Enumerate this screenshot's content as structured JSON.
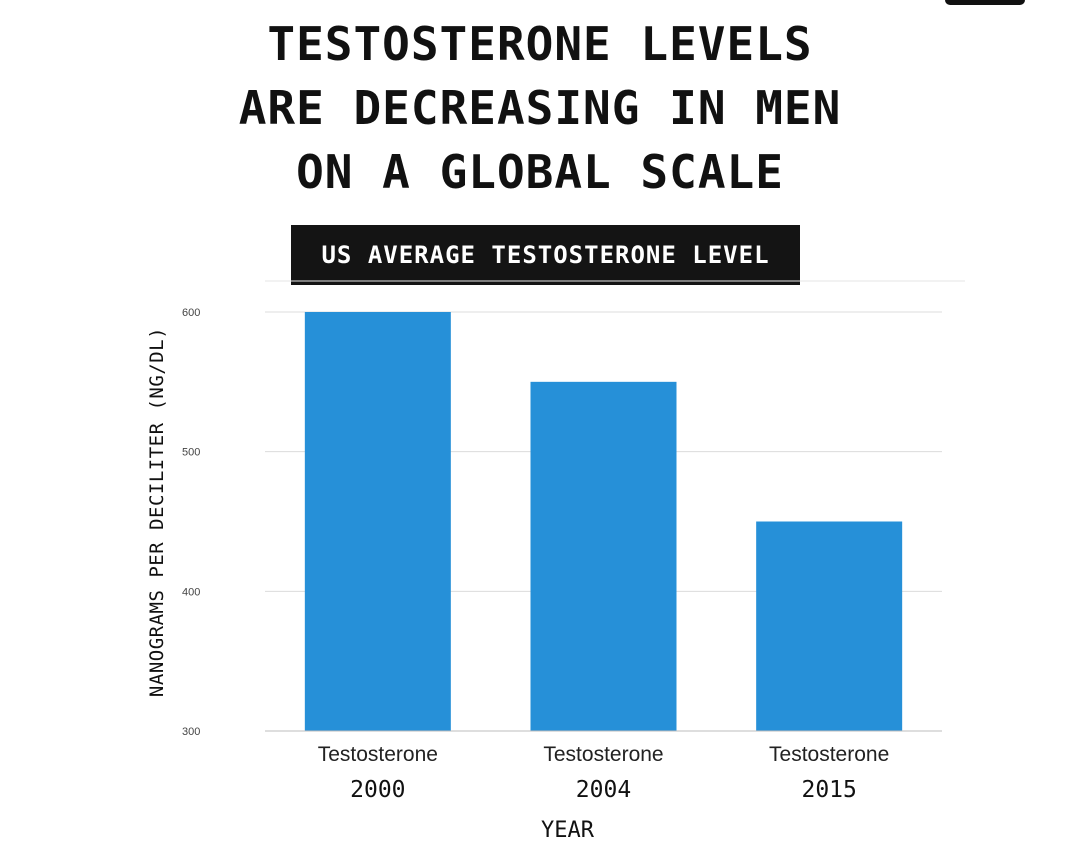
{
  "headline": {
    "line1": "TESTOSTERONE LEVELS",
    "line2": "ARE DECREASING IN MEN",
    "line3": "ON A GLOBAL SCALE"
  },
  "chart_data": {
    "type": "bar",
    "title": "US AVERAGE TESTOSTERONE LEVEL",
    "categories": [
      "Testosterone",
      "Testosterone",
      "Testosterone"
    ],
    "x_labels": [
      "2000",
      "2004",
      "2015"
    ],
    "values": [
      600,
      550,
      450
    ],
    "ylabel": "NANOGRAMS PER DECILITER (NG/DL)",
    "xlabel": "YEAR",
    "ylim": [
      300,
      600
    ],
    "yticks": [
      300,
      400,
      500,
      600
    ],
    "grid": true,
    "bar_color": "#2690D8"
  }
}
